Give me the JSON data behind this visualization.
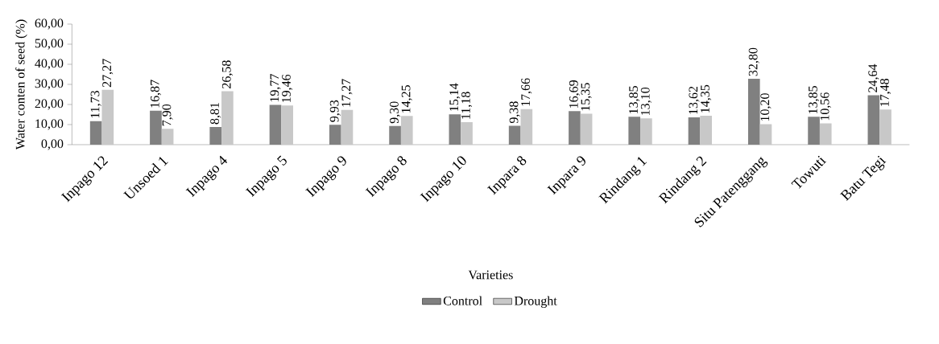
{
  "chart_data": {
    "type": "bar",
    "xlabel": "Varieties",
    "ylabel": "Water conten of seed (%)",
    "categories": [
      "Inpago 12",
      "Unsoed 1",
      "Inpago 4",
      "Inpago 5",
      "Inpago 9",
      "Inpago 8",
      "Inpago 10",
      "Inpara 8",
      "Inpara 9",
      "Rindang 1",
      "Rindang 2",
      "Situ Patenggang",
      "Towuti",
      "Batu Tegi"
    ],
    "series": [
      {
        "name": "Control",
        "color": "#808080",
        "values": [
          11.73,
          16.87,
          8.81,
          19.77,
          9.93,
          9.3,
          15.14,
          9.38,
          16.69,
          13.85,
          13.62,
          32.8,
          13.85,
          24.64
        ],
        "value_labels": [
          "11,73",
          "16,87",
          "8,81",
          "19,77",
          "9,93",
          "9,30",
          "15,14",
          "9,38",
          "16,69",
          "13,85",
          "13,62",
          "32,80",
          "13,85",
          "24,64"
        ]
      },
      {
        "name": "Drought",
        "color": "#c8c8c8",
        "values": [
          27.27,
          7.9,
          26.58,
          19.46,
          17.27,
          14.25,
          11.18,
          17.66,
          15.35,
          13.1,
          14.35,
          10.2,
          10.56,
          17.48
        ],
        "value_labels": [
          "27,27",
          "7,90",
          "26,58",
          "19,46",
          "17,27",
          "14,25",
          "11,18",
          "17,66",
          "15,35",
          "13,10",
          "14,35",
          "10,20",
          "10,56",
          "17,48"
        ]
      }
    ],
    "ylim": [
      0,
      60
    ],
    "yticks": [
      {
        "value": 0,
        "label": "0,00"
      },
      {
        "value": 10,
        "label": "10,00"
      },
      {
        "value": 20,
        "label": "20,00"
      },
      {
        "value": 30,
        "label": "30,00"
      },
      {
        "value": 40,
        "label": "40,00"
      },
      {
        "value": 50,
        "label": "50,00"
      },
      {
        "value": 60,
        "label": "60,00"
      }
    ],
    "legend": "bottom"
  }
}
